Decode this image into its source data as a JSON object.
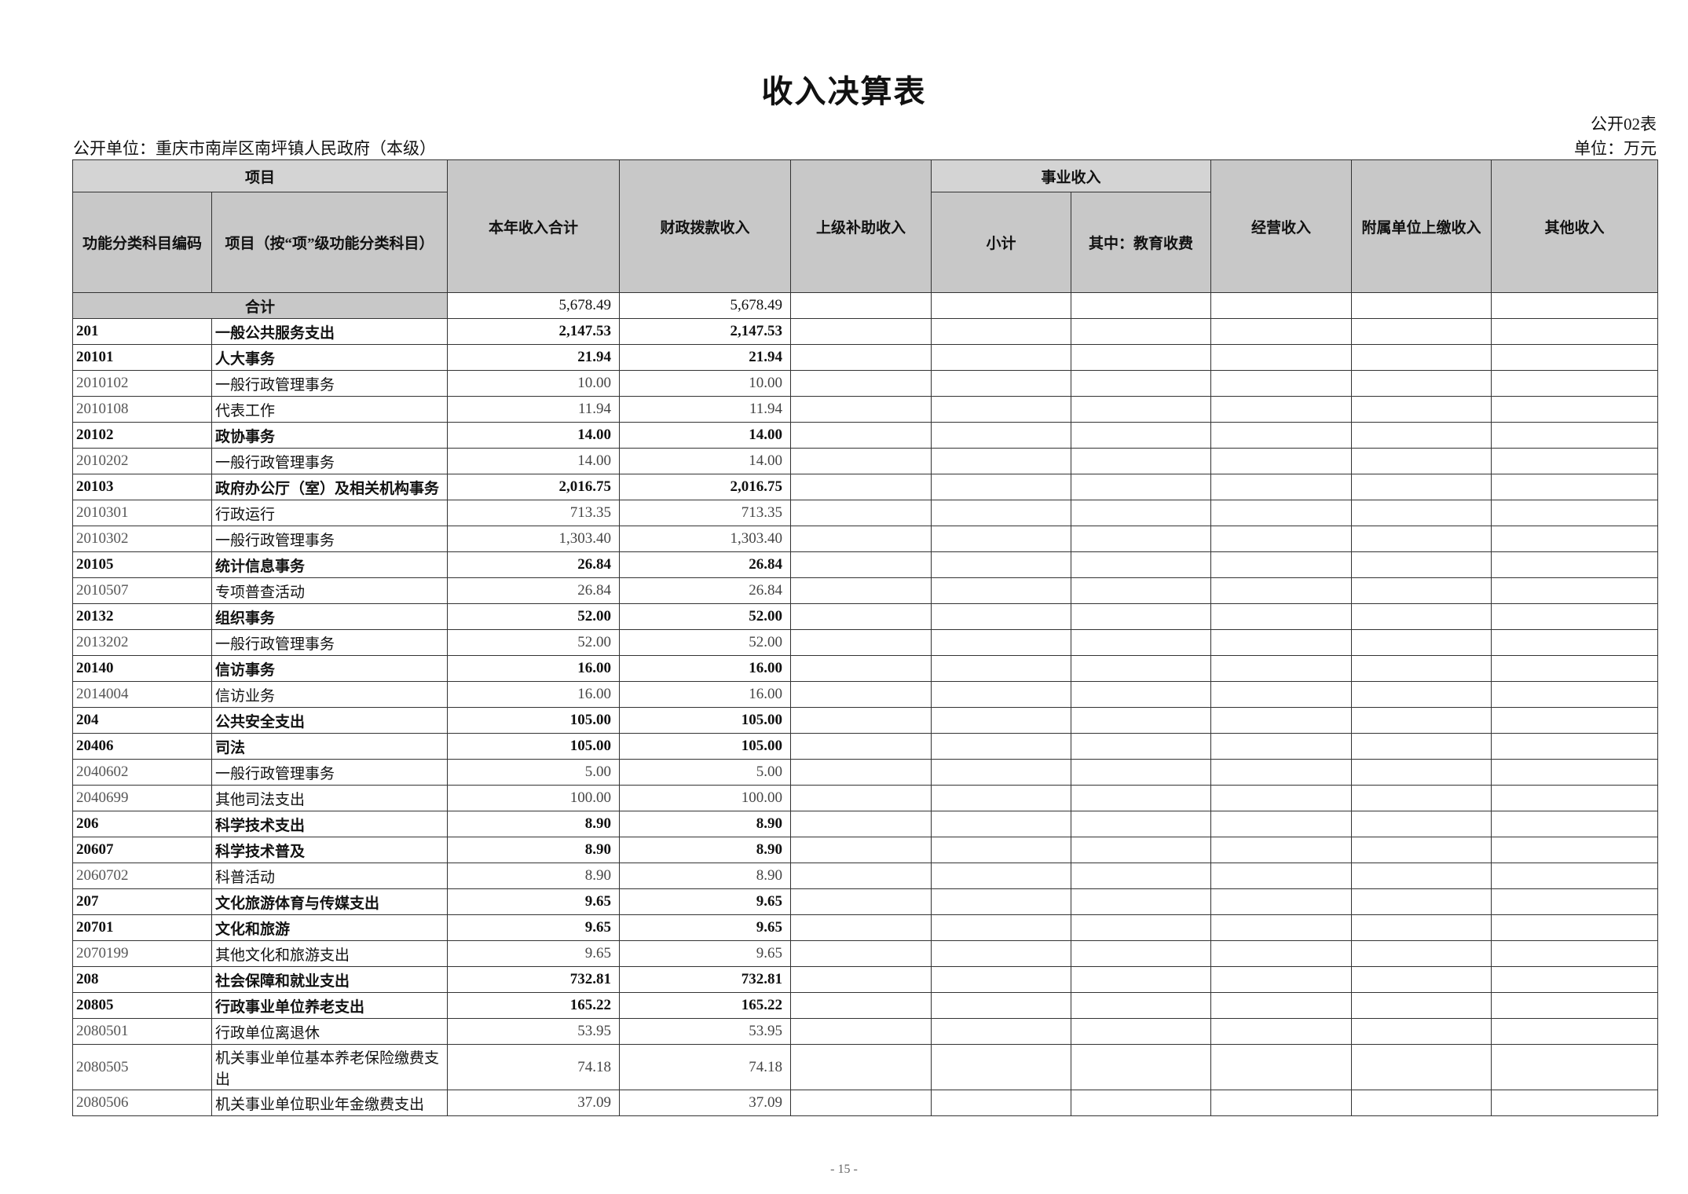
{
  "title": "收入决算表",
  "form_no": "公开02表",
  "unit_left": "公开单位：重庆市南岸区南坪镇人民政府（本级）",
  "unit_right": "单位：万元",
  "header": {
    "item": "项目",
    "code": "功能分类科目编码",
    "name": "项目（按“项”级功能分类科目）",
    "total": "本年收入合计",
    "fiscal": "财政拨款收入",
    "superior": "上级补助收入",
    "career": "事业收入",
    "subtotal": "小计",
    "education": "其中：教育收费",
    "operating": "经营收入",
    "affiliated": "附属单位上缴收入",
    "other": "其他收入"
  },
  "total_row": {
    "label": "合计",
    "total": "5,678.49",
    "fiscal": "5,678.49"
  },
  "rows": [
    {
      "code": "201",
      "name": "一般公共服务支出",
      "total": "2,147.53",
      "fiscal": "2,147.53",
      "level": "bold"
    },
    {
      "code": "20101",
      "name": "人大事务",
      "total": "21.94",
      "fiscal": "21.94",
      "level": "bold"
    },
    {
      "code": "2010102",
      "name": "一般行政管理事务",
      "total": "10.00",
      "fiscal": "10.00",
      "level": "detail"
    },
    {
      "code": "2010108",
      "name": "代表工作",
      "total": "11.94",
      "fiscal": "11.94",
      "level": "detail"
    },
    {
      "code": "20102",
      "name": "政协事务",
      "total": "14.00",
      "fiscal": "14.00",
      "level": "bold"
    },
    {
      "code": "2010202",
      "name": "一般行政管理事务",
      "total": "14.00",
      "fiscal": "14.00",
      "level": "detail"
    },
    {
      "code": "20103",
      "name": "政府办公厅（室）及相关机构事务",
      "total": "2,016.75",
      "fiscal": "2,016.75",
      "level": "bold"
    },
    {
      "code": "2010301",
      "name": "行政运行",
      "total": "713.35",
      "fiscal": "713.35",
      "level": "detail"
    },
    {
      "code": "2010302",
      "name": "一般行政管理事务",
      "total": "1,303.40",
      "fiscal": "1,303.40",
      "level": "detail"
    },
    {
      "code": "20105",
      "name": "统计信息事务",
      "total": "26.84",
      "fiscal": "26.84",
      "level": "bold"
    },
    {
      "code": "2010507",
      "name": "专项普查活动",
      "total": "26.84",
      "fiscal": "26.84",
      "level": "detail"
    },
    {
      "code": "20132",
      "name": "组织事务",
      "total": "52.00",
      "fiscal": "52.00",
      "level": "bold"
    },
    {
      "code": "2013202",
      "name": "一般行政管理事务",
      "total": "52.00",
      "fiscal": "52.00",
      "level": "detail"
    },
    {
      "code": "20140",
      "name": "信访事务",
      "total": "16.00",
      "fiscal": "16.00",
      "level": "bold"
    },
    {
      "code": "2014004",
      "name": "信访业务",
      "total": "16.00",
      "fiscal": "16.00",
      "level": "detail"
    },
    {
      "code": "204",
      "name": "公共安全支出",
      "total": "105.00",
      "fiscal": "105.00",
      "level": "bold"
    },
    {
      "code": "20406",
      "name": "司法",
      "total": "105.00",
      "fiscal": "105.00",
      "level": "bold"
    },
    {
      "code": "2040602",
      "name": "一般行政管理事务",
      "total": "5.00",
      "fiscal": "5.00",
      "level": "detail"
    },
    {
      "code": "2040699",
      "name": "其他司法支出",
      "total": "100.00",
      "fiscal": "100.00",
      "level": "detail"
    },
    {
      "code": "206",
      "name": "科学技术支出",
      "total": "8.90",
      "fiscal": "8.90",
      "level": "bold"
    },
    {
      "code": "20607",
      "name": "科学技术普及",
      "total": "8.90",
      "fiscal": "8.90",
      "level": "bold"
    },
    {
      "code": "2060702",
      "name": "科普活动",
      "total": "8.90",
      "fiscal": "8.90",
      "level": "detail"
    },
    {
      "code": "207",
      "name": "文化旅游体育与传媒支出",
      "total": "9.65",
      "fiscal": "9.65",
      "level": "bold"
    },
    {
      "code": "20701",
      "name": "文化和旅游",
      "total": "9.65",
      "fiscal": "9.65",
      "level": "bold"
    },
    {
      "code": "2070199",
      "name": "其他文化和旅游支出",
      "total": "9.65",
      "fiscal": "9.65",
      "level": "detail"
    },
    {
      "code": "208",
      "name": "社会保障和就业支出",
      "total": "732.81",
      "fiscal": "732.81",
      "level": "bold"
    },
    {
      "code": "20805",
      "name": "行政事业单位养老支出",
      "total": "165.22",
      "fiscal": "165.22",
      "level": "bold"
    },
    {
      "code": "2080501",
      "name": "行政单位离退休",
      "total": "53.95",
      "fiscal": "53.95",
      "level": "detail"
    },
    {
      "code": "2080505",
      "name": "机关事业单位基本养老保险缴费支出",
      "total": "74.18",
      "fiscal": "74.18",
      "level": "detail"
    },
    {
      "code": "2080506",
      "name": "机关事业单位职业年金缴费支出",
      "total": "37.09",
      "fiscal": "37.09",
      "level": "detail"
    }
  ],
  "page_number": "- 15 -"
}
